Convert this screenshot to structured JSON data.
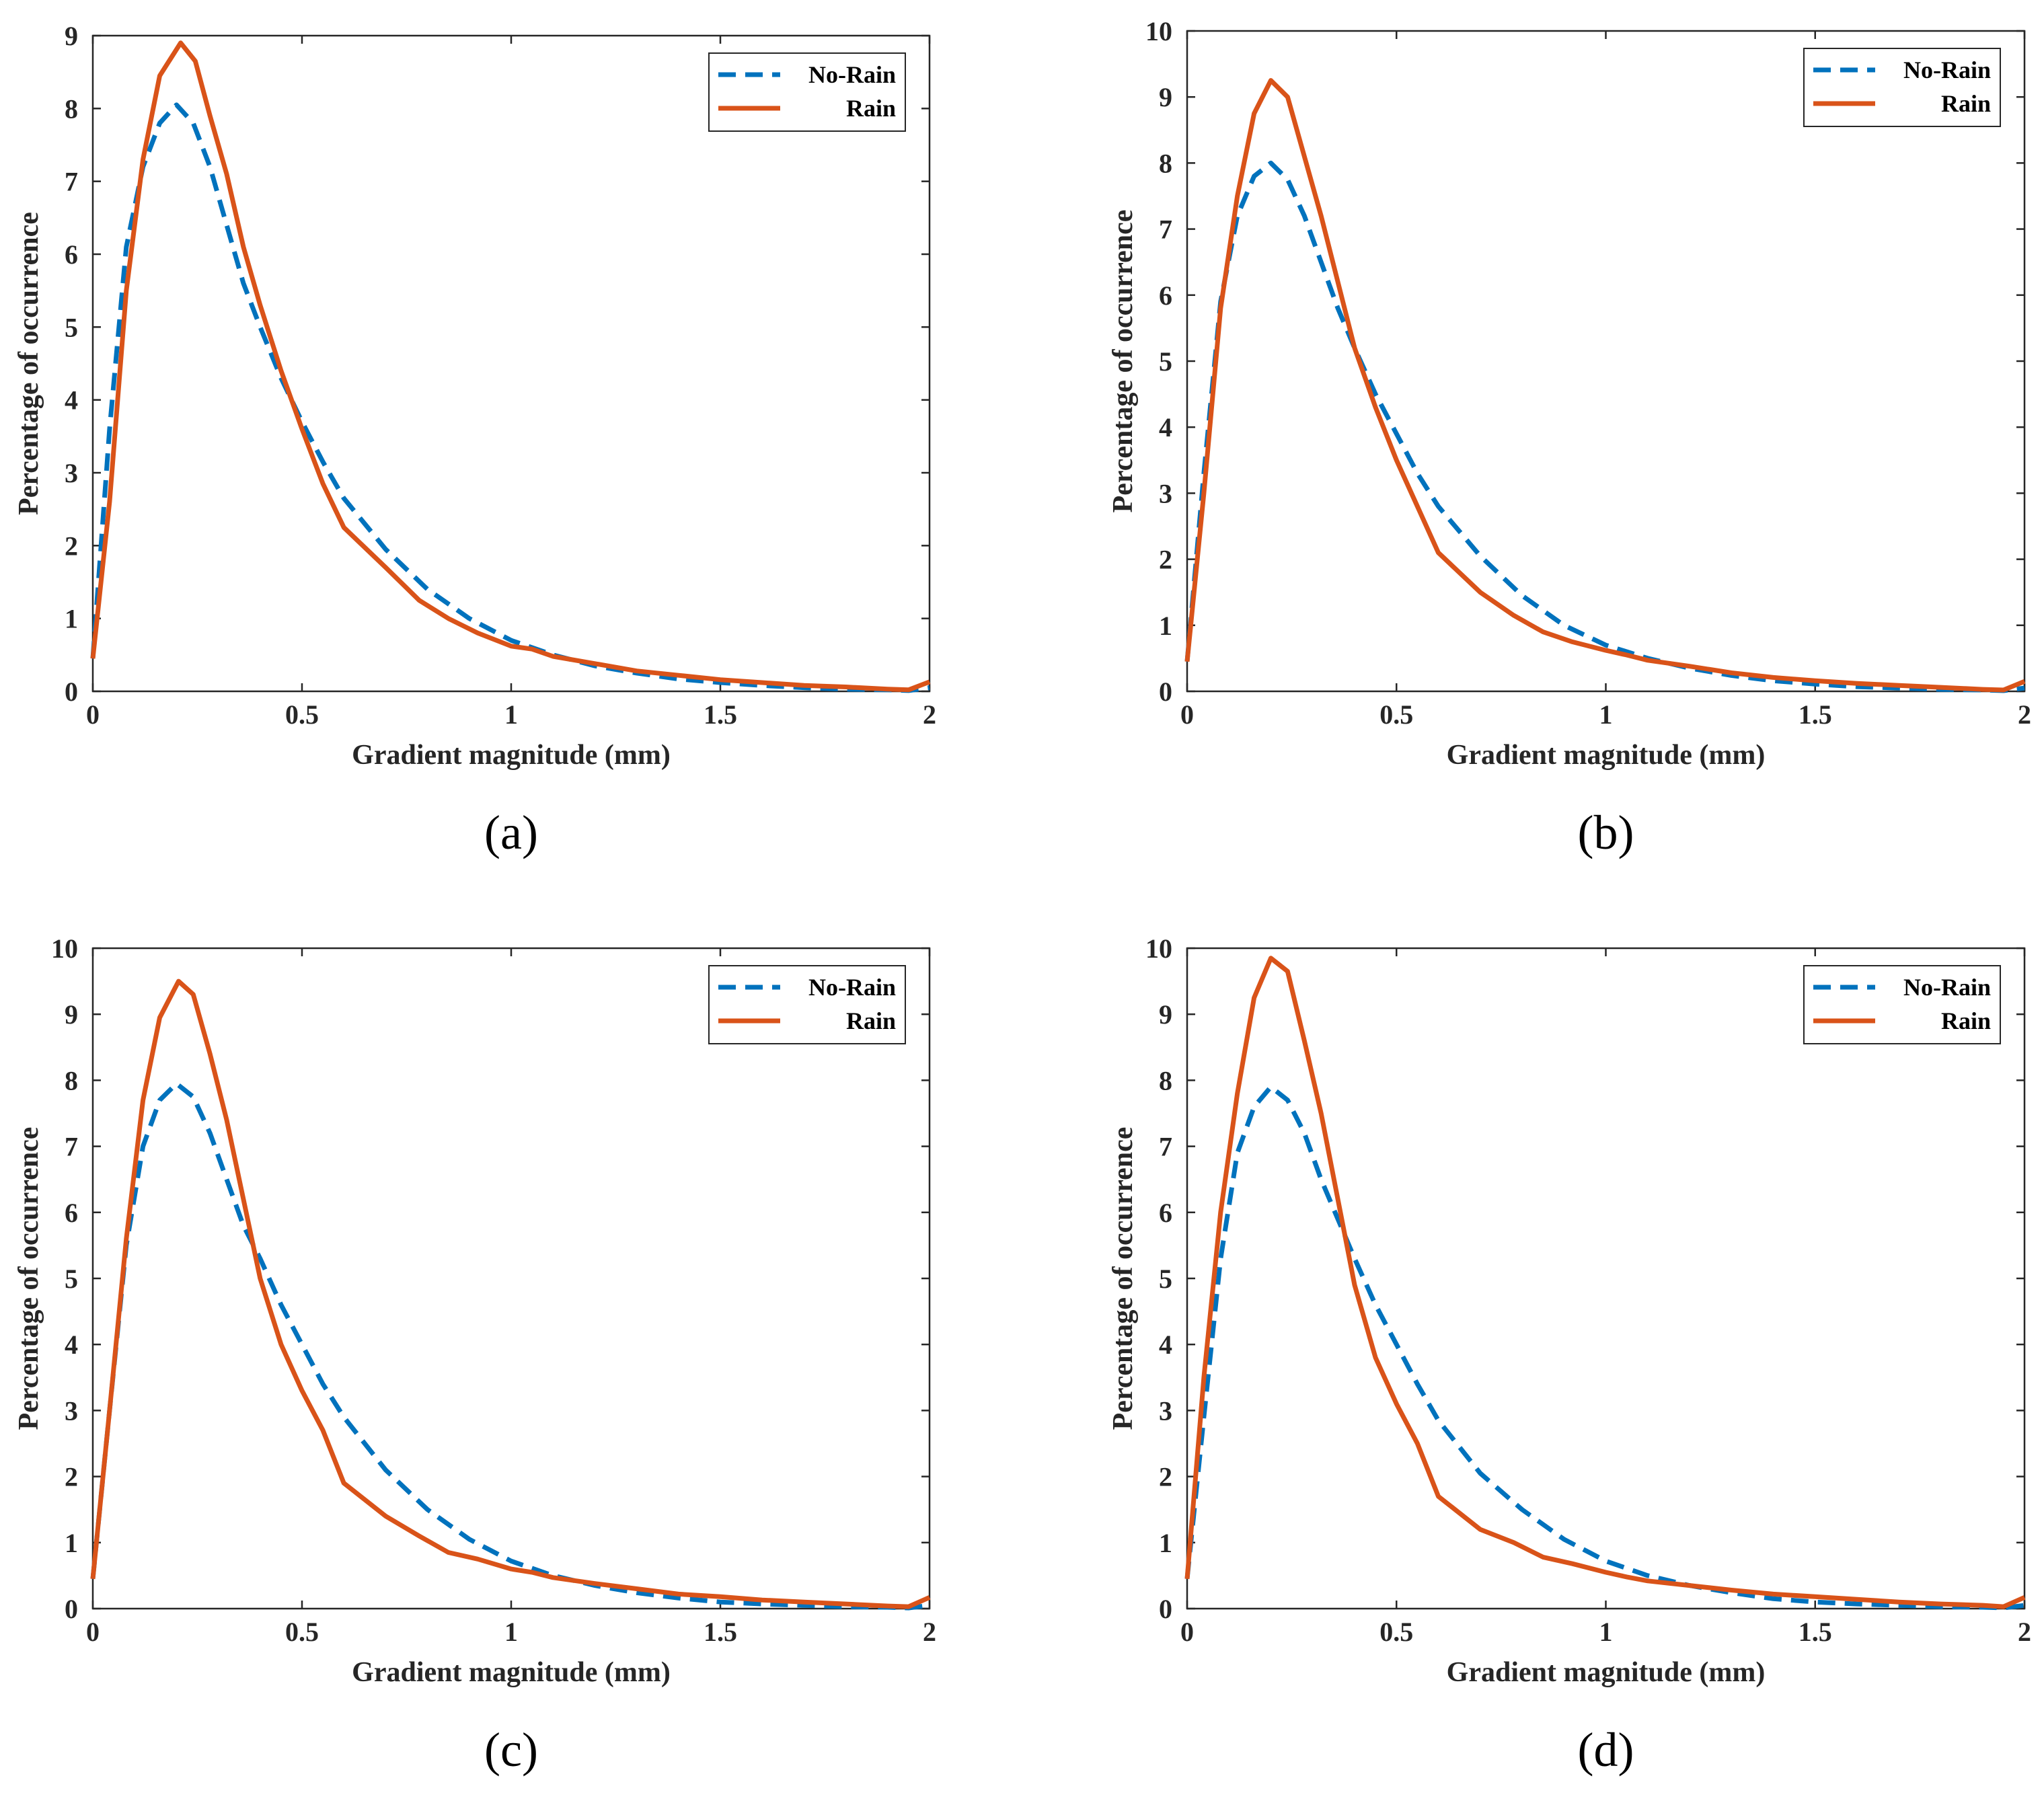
{
  "colors": {
    "no_rain": "#0072BD",
    "rain": "#D95319",
    "axis": "#262626"
  },
  "chart_data": [
    {
      "type": "line",
      "caption": "(a)",
      "xlabel": "Gradient magnitude (mm)",
      "ylabel": "Percentage of occurrence",
      "xlim": [
        0,
        2
      ],
      "ylim": [
        0,
        9
      ],
      "xticks": [
        0,
        0.5,
        1,
        1.5,
        2
      ],
      "xtick_labels": [
        "0",
        "0.5",
        "1",
        "1.5",
        "2"
      ],
      "yticks": [
        0,
        1,
        2,
        3,
        4,
        5,
        6,
        7,
        8,
        9
      ],
      "ytick_labels": [
        "0",
        "1",
        "2",
        "3",
        "4",
        "5",
        "6",
        "7",
        "8",
        "9"
      ],
      "legend": {
        "position": "top-right",
        "entries": [
          "No-Rain",
          "Rain"
        ]
      },
      "series": [
        {
          "name": "No-Rain",
          "style": "dashed",
          "x": [
            0,
            0.04,
            0.08,
            0.12,
            0.16,
            0.2,
            0.24,
            0.28,
            0.32,
            0.36,
            0.4,
            0.45,
            0.5,
            0.55,
            0.6,
            0.7,
            0.8,
            0.9,
            1.0,
            1.1,
            1.2,
            1.3,
            1.4,
            1.5,
            1.6,
            1.7,
            1.8,
            1.9,
            1.95,
            2.0
          ],
          "y": [
            0.45,
            3.6,
            6.1,
            7.2,
            7.8,
            8.05,
            7.8,
            7.2,
            6.4,
            5.6,
            5.0,
            4.3,
            3.7,
            3.15,
            2.65,
            1.95,
            1.4,
            1.0,
            0.7,
            0.5,
            0.35,
            0.25,
            0.17,
            0.12,
            0.08,
            0.05,
            0.03,
            0.02,
            0.01,
            0.05
          ]
        },
        {
          "name": "Rain",
          "style": "solid",
          "x": [
            0,
            0.04,
            0.08,
            0.12,
            0.16,
            0.21,
            0.245,
            0.28,
            0.32,
            0.36,
            0.4,
            0.45,
            0.5,
            0.55,
            0.6,
            0.7,
            0.78,
            0.85,
            0.92,
            1.0,
            1.05,
            1.1,
            1.2,
            1.3,
            1.4,
            1.5,
            1.6,
            1.7,
            1.8,
            1.9,
            1.95,
            2.0
          ],
          "y": [
            0.45,
            2.6,
            5.5,
            7.3,
            8.45,
            8.9,
            8.65,
            7.9,
            7.1,
            6.1,
            5.3,
            4.4,
            3.6,
            2.85,
            2.25,
            1.7,
            1.25,
            1.0,
            0.8,
            0.62,
            0.58,
            0.48,
            0.38,
            0.28,
            0.22,
            0.16,
            0.12,
            0.08,
            0.06,
            0.03,
            0.02,
            0.13
          ]
        }
      ]
    },
    {
      "type": "line",
      "caption": "(b)",
      "xlabel": "Gradient magnitude (mm)",
      "ylabel": "Percentage of occurrence",
      "xlim": [
        0,
        2
      ],
      "ylim": [
        0,
        10
      ],
      "xticks": [
        0,
        0.5,
        1,
        1.5,
        2
      ],
      "xtick_labels": [
        "0",
        "0.5",
        "1",
        "1.5",
        "2"
      ],
      "yticks": [
        0,
        1,
        2,
        3,
        4,
        5,
        6,
        7,
        8,
        9,
        10
      ],
      "ytick_labels": [
        "0",
        "1",
        "2",
        "3",
        "4",
        "5",
        "6",
        "7",
        "8",
        "9",
        "10"
      ],
      "legend": {
        "position": "top-right",
        "entries": [
          "No-Rain",
          "Rain"
        ]
      },
      "series": [
        {
          "name": "No-Rain",
          "style": "dashed",
          "x": [
            0,
            0.04,
            0.08,
            0.12,
            0.16,
            0.2,
            0.24,
            0.28,
            0.32,
            0.36,
            0.4,
            0.45,
            0.5,
            0.55,
            0.6,
            0.7,
            0.8,
            0.9,
            1.0,
            1.1,
            1.2,
            1.3,
            1.4,
            1.5,
            1.6,
            1.7,
            1.8,
            1.9,
            1.95,
            2.0
          ],
          "y": [
            0.45,
            3.3,
            5.9,
            7.2,
            7.8,
            8.0,
            7.75,
            7.2,
            6.5,
            5.8,
            5.2,
            4.5,
            3.9,
            3.3,
            2.8,
            2.05,
            1.45,
            1.0,
            0.7,
            0.5,
            0.35,
            0.24,
            0.16,
            0.11,
            0.07,
            0.05,
            0.03,
            0.02,
            0.01,
            0.05
          ]
        },
        {
          "name": "Rain",
          "style": "solid",
          "x": [
            0,
            0.04,
            0.08,
            0.12,
            0.16,
            0.2,
            0.24,
            0.28,
            0.32,
            0.36,
            0.4,
            0.45,
            0.5,
            0.55,
            0.6,
            0.7,
            0.78,
            0.85,
            0.92,
            1.0,
            1.05,
            1.1,
            1.2,
            1.3,
            1.4,
            1.5,
            1.6,
            1.7,
            1.8,
            1.9,
            1.95,
            2.0
          ],
          "y": [
            0.45,
            3.0,
            5.8,
            7.5,
            8.75,
            9.25,
            9.0,
            8.1,
            7.2,
            6.2,
            5.2,
            4.3,
            3.5,
            2.8,
            2.1,
            1.5,
            1.15,
            0.9,
            0.75,
            0.62,
            0.55,
            0.47,
            0.38,
            0.28,
            0.21,
            0.16,
            0.12,
            0.09,
            0.06,
            0.03,
            0.02,
            0.15
          ]
        }
      ]
    },
    {
      "type": "line",
      "caption": "(c)",
      "xlabel": "Gradient magnitude (mm)",
      "ylabel": "Percentage of occurrence",
      "xlim": [
        0,
        2
      ],
      "ylim": [
        0,
        10
      ],
      "xticks": [
        0,
        0.5,
        1,
        1.5,
        2
      ],
      "xtick_labels": [
        "0",
        "0.5",
        "1",
        "1.5",
        "2"
      ],
      "yticks": [
        0,
        1,
        2,
        3,
        4,
        5,
        6,
        7,
        8,
        9,
        10
      ],
      "ytick_labels": [
        "0",
        "1",
        "2",
        "3",
        "4",
        "5",
        "6",
        "7",
        "8",
        "9",
        "10"
      ],
      "legend": {
        "position": "top-right",
        "entries": [
          "No-Rain",
          "Rain"
        ]
      },
      "series": [
        {
          "name": "No-Rain",
          "style": "dashed",
          "x": [
            0,
            0.04,
            0.08,
            0.12,
            0.16,
            0.2,
            0.24,
            0.28,
            0.32,
            0.36,
            0.4,
            0.45,
            0.5,
            0.55,
            0.6,
            0.7,
            0.8,
            0.9,
            1.0,
            1.1,
            1.2,
            1.3,
            1.4,
            1.5,
            1.6,
            1.7,
            1.8,
            1.9,
            1.95,
            2.0
          ],
          "y": [
            0.45,
            3.0,
            5.5,
            7.0,
            7.7,
            7.95,
            7.75,
            7.2,
            6.5,
            5.8,
            5.3,
            4.6,
            4.0,
            3.4,
            2.9,
            2.1,
            1.5,
            1.05,
            0.72,
            0.5,
            0.35,
            0.24,
            0.16,
            0.1,
            0.07,
            0.05,
            0.03,
            0.02,
            0.01,
            0.05
          ]
        },
        {
          "name": "Rain",
          "style": "solid",
          "x": [
            0,
            0.04,
            0.08,
            0.12,
            0.16,
            0.205,
            0.24,
            0.28,
            0.32,
            0.36,
            0.4,
            0.45,
            0.5,
            0.55,
            0.6,
            0.7,
            0.78,
            0.85,
            0.92,
            1.0,
            1.05,
            1.1,
            1.2,
            1.3,
            1.4,
            1.5,
            1.6,
            1.7,
            1.8,
            1.9,
            1.95,
            2.0
          ],
          "y": [
            0.45,
            3.0,
            5.6,
            7.7,
            8.95,
            9.5,
            9.3,
            8.4,
            7.4,
            6.2,
            5.0,
            4.0,
            3.3,
            2.7,
            1.9,
            1.4,
            1.1,
            0.85,
            0.75,
            0.6,
            0.55,
            0.47,
            0.38,
            0.3,
            0.22,
            0.18,
            0.13,
            0.1,
            0.07,
            0.04,
            0.03,
            0.17
          ]
        }
      ]
    },
    {
      "type": "line",
      "caption": "(d)",
      "xlabel": "Gradient magnitude (mm)",
      "ylabel": "Percentage of occurrence",
      "xlim": [
        0,
        2
      ],
      "ylim": [
        0,
        10
      ],
      "xticks": [
        0,
        0.5,
        1,
        1.5,
        2
      ],
      "xtick_labels": [
        "0",
        "0.5",
        "1",
        "1.5",
        "2"
      ],
      "yticks": [
        0,
        1,
        2,
        3,
        4,
        5,
        6,
        7,
        8,
        9,
        10
      ],
      "ytick_labels": [
        "0",
        "1",
        "2",
        "3",
        "4",
        "5",
        "6",
        "7",
        "8",
        "9",
        "10"
      ],
      "legend": {
        "position": "top-right",
        "entries": [
          "No-Rain",
          "Rain"
        ]
      },
      "series": [
        {
          "name": "No-Rain",
          "style": "dashed",
          "x": [
            0,
            0.04,
            0.08,
            0.12,
            0.16,
            0.2,
            0.24,
            0.28,
            0.32,
            0.36,
            0.4,
            0.45,
            0.5,
            0.55,
            0.6,
            0.7,
            0.8,
            0.9,
            1.0,
            1.1,
            1.2,
            1.3,
            1.4,
            1.5,
            1.6,
            1.7,
            1.8,
            1.9,
            1.95,
            2.0
          ],
          "y": [
            0.45,
            2.9,
            5.3,
            6.9,
            7.6,
            7.9,
            7.7,
            7.2,
            6.5,
            5.9,
            5.3,
            4.6,
            4.0,
            3.4,
            2.85,
            2.05,
            1.5,
            1.05,
            0.72,
            0.5,
            0.35,
            0.24,
            0.15,
            0.1,
            0.07,
            0.05,
            0.03,
            0.02,
            0.01,
            0.05
          ]
        },
        {
          "name": "Rain",
          "style": "solid",
          "x": [
            0,
            0.04,
            0.08,
            0.12,
            0.16,
            0.2,
            0.24,
            0.28,
            0.32,
            0.36,
            0.4,
            0.45,
            0.5,
            0.55,
            0.6,
            0.7,
            0.78,
            0.85,
            0.92,
            1.0,
            1.05,
            1.1,
            1.2,
            1.3,
            1.4,
            1.5,
            1.6,
            1.7,
            1.8,
            1.9,
            1.95,
            2.0
          ],
          "y": [
            0.45,
            3.5,
            6.0,
            7.8,
            9.25,
            9.85,
            9.65,
            8.6,
            7.5,
            6.2,
            4.9,
            3.8,
            3.1,
            2.5,
            1.7,
            1.2,
            1.0,
            0.78,
            0.68,
            0.55,
            0.48,
            0.42,
            0.35,
            0.28,
            0.22,
            0.18,
            0.14,
            0.1,
            0.07,
            0.05,
            0.03,
            0.17
          ]
        }
      ]
    }
  ]
}
